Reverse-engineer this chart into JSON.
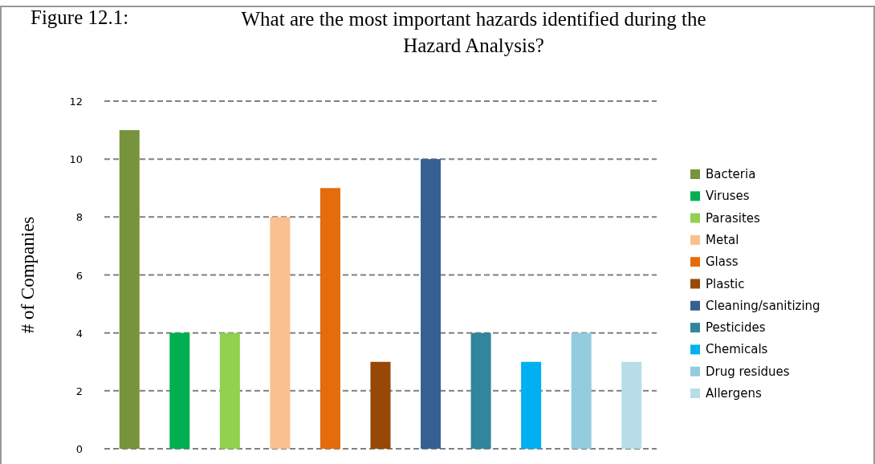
{
  "chart_data": {
    "type": "bar",
    "title": "Figure 12.1:",
    "subtitle": "What are the most important hazards identified during the Hazard Analysis?",
    "ylabel": "# of Companies",
    "categories": [
      null,
      null,
      null,
      null,
      null,
      null,
      null,
      null,
      null,
      null,
      null
    ],
    "series": [
      {
        "name": "Bacteria",
        "color": "#77933c",
        "values": [
          11,
          null,
          null,
          null,
          null,
          null,
          null,
          null,
          null,
          null,
          null
        ]
      },
      {
        "name": "Viruses",
        "color": "#00b050",
        "values": [
          null,
          4,
          null,
          null,
          null,
          null,
          null,
          null,
          null,
          null,
          null
        ]
      },
      {
        "name": "Parasites",
        "color": "#92d050",
        "values": [
          null,
          null,
          4,
          null,
          null,
          null,
          null,
          null,
          null,
          null,
          null
        ]
      },
      {
        "name": "Metal",
        "color": "#fac090",
        "values": [
          null,
          null,
          null,
          8,
          null,
          null,
          null,
          null,
          null,
          null,
          null
        ]
      },
      {
        "name": "Glass",
        "color": "#e46c0a",
        "values": [
          null,
          null,
          null,
          null,
          9,
          null,
          null,
          null,
          null,
          null,
          null
        ]
      },
      {
        "name": "Plastic",
        "color": "#974806",
        "values": [
          null,
          null,
          null,
          null,
          null,
          3,
          null,
          null,
          null,
          null,
          null
        ]
      },
      {
        "name": "Cleaning/sanitizing",
        "color": "#366092",
        "values": [
          null,
          null,
          null,
          null,
          null,
          null,
          10,
          null,
          null,
          null,
          null
        ]
      },
      {
        "name": "Pesticides",
        "color": "#31859c",
        "values": [
          null,
          null,
          null,
          null,
          null,
          null,
          null,
          4,
          null,
          null,
          null
        ]
      },
      {
        "name": "Chemicals",
        "color": "#00b0f0",
        "values": [
          null,
          null,
          null,
          null,
          null,
          null,
          null,
          null,
          3,
          null,
          null
        ]
      },
      {
        "name": "Drug residues",
        "color": "#93cddd",
        "values": [
          null,
          null,
          null,
          null,
          null,
          null,
          null,
          null,
          null,
          4,
          null
        ]
      },
      {
        "name": "Allergens",
        "color": "#b7dee8",
        "values": [
          null,
          null,
          null,
          null,
          null,
          null,
          null,
          null,
          null,
          null,
          3
        ]
      }
    ],
    "ylim": [
      0,
      12
    ],
    "yticks": [
      0,
      2,
      4,
      6,
      8,
      10,
      12
    ],
    "grid": "y",
    "legend": "right"
  }
}
